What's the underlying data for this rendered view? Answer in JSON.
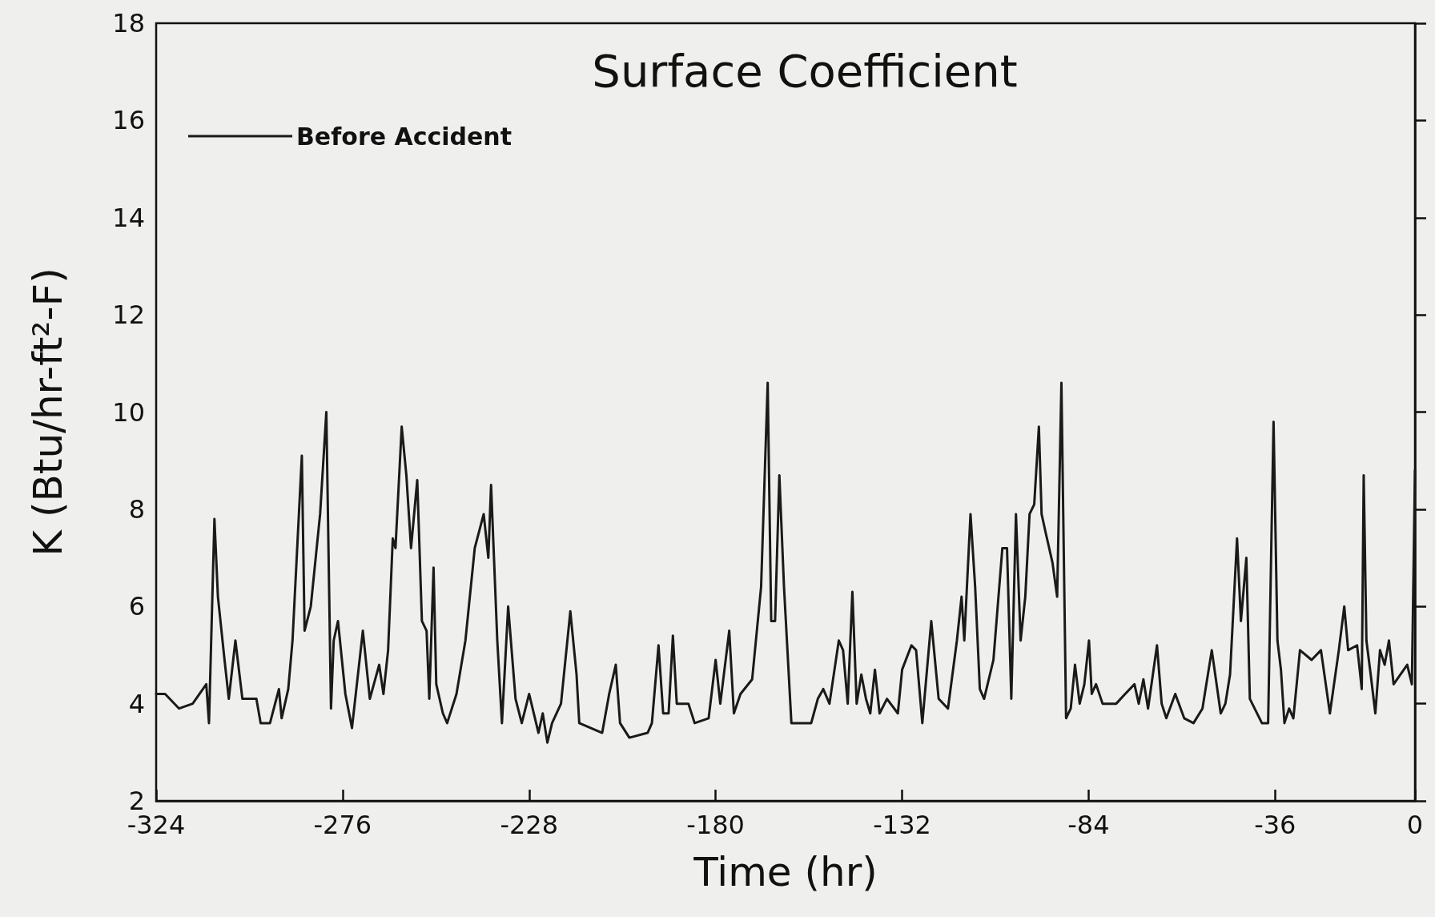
{
  "chart_data": {
    "type": "line",
    "title": "Surface Coefficient",
    "xlabel": "Time (hr)",
    "ylabel": "K (Btu/hr-ft²-F)",
    "xlim": [
      -324,
      0
    ],
    "xticks": [
      -324,
      -276,
      -228,
      -180,
      -132,
      -84,
      -36,
      0
    ],
    "ylim": [
      2,
      18
    ],
    "yticks": [
      2,
      4,
      6,
      8,
      10,
      12,
      14,
      16,
      18
    ],
    "grid": false,
    "legend": "top left",
    "marker": "none",
    "line_style": "solid",
    "series": [
      {
        "name": "Before Accident",
        "color": "#1a1a1a",
        "x": [
          -324,
          -321.7,
          -318.1,
          -314.6,
          -311.1,
          -310.4,
          -309,
          -308.1,
          -306.4,
          -305.3,
          -303.6,
          -301.8,
          -298.2,
          -297.1,
          -294.7,
          -292.4,
          -291.7,
          -290,
          -288.9,
          -286.5,
          -285.8,
          -284.2,
          -281.8,
          -280.2,
          -279,
          -278.3,
          -277.2,
          -275.3,
          -273.6,
          -270.8,
          -269,
          -266.6,
          -265.5,
          -264.3,
          -263.1,
          -262.4,
          -260.8,
          -259.6,
          -258.4,
          -256.8,
          -255.6,
          -254.4,
          -253.7,
          -252.6,
          -251.9,
          -250.2,
          -249.1,
          -246.7,
          -244.4,
          -242,
          -239.7,
          -238.5,
          -237.8,
          -236.2,
          -235,
          -233.4,
          -231.5,
          -229.9,
          -228,
          -225.6,
          -224.5,
          -223.3,
          -222.1,
          -219.8,
          -217.4,
          -215.8,
          -215.1,
          -209.2,
          -207.4,
          -205.7,
          -204.6,
          -202.2,
          -197.5,
          -196.4,
          -194.7,
          -193.5,
          -192.1,
          -191,
          -190,
          -187,
          -185.4,
          -181.8,
          -180,
          -178.8,
          -176.5,
          -175.3,
          -173.6,
          -170.6,
          -168.3,
          -166.6,
          -165.7,
          -164.7,
          -163.6,
          -162.4,
          -160.5,
          -155.4,
          -153.7,
          -152.3,
          -150.7,
          -148.3,
          -147.2,
          -146,
          -144.8,
          -143.7,
          -142.5,
          -141.3,
          -140.2,
          -139,
          -137.8,
          -135.9,
          -133.1,
          -132,
          -129.6,
          -128.4,
          -126.8,
          -124.5,
          -122.6,
          -120.2,
          -117.9,
          -116.7,
          -116,
          -114.4,
          -113.2,
          -112,
          -110.9,
          -108.5,
          -106.2,
          -105,
          -103.9,
          -102.7,
          -101.5,
          -100.3,
          -99.2,
          -98,
          -96.8,
          -96.1,
          -95,
          -93.3,
          -92.1,
          -91,
          -89.8,
          -88.6,
          -87.5,
          -86.3,
          -85.1,
          -83.9,
          -83.2,
          -82.1,
          -80.4,
          -76.9,
          -74.6,
          -72.2,
          -71.1,
          -69.9,
          -68.7,
          -66.4,
          -65.2,
          -64,
          -61.7,
          -59.4,
          -57,
          -54.7,
          -52.3,
          -50,
          -48.8,
          -47.6,
          -45.8,
          -44.8,
          -43.4,
          -42.5,
          -39.4,
          -37.8,
          -36.4,
          -35.4,
          -34.5,
          -33.6,
          -32.4,
          -31.3,
          -29.6,
          -26.6,
          -24.2,
          -21.9,
          -19.6,
          -18.2,
          -17.2,
          -14.9,
          -13.7,
          -13.2,
          -12.5,
          -11.4,
          -10.2,
          -9,
          -7.8,
          -6.7,
          -5.5,
          -2,
          -0.8,
          0
        ],
        "values": [
          4.2,
          4.2,
          3.9,
          4.0,
          4.4,
          3.6,
          7.8,
          6.2,
          4.9,
          4.1,
          5.3,
          4.1,
          4.1,
          3.6,
          3.6,
          4.3,
          3.7,
          4.3,
          5.3,
          9.1,
          5.5,
          6.0,
          7.9,
          10.0,
          3.9,
          5.3,
          5.7,
          4.2,
          3.5,
          5.5,
          4.1,
          4.8,
          4.2,
          5.1,
          7.4,
          7.2,
          9.7,
          8.7,
          7.2,
          8.6,
          5.7,
          5.5,
          4.1,
          6.8,
          4.4,
          3.8,
          3.6,
          4.2,
          5.3,
          7.2,
          7.9,
          7.0,
          8.5,
          5.3,
          3.6,
          6.0,
          4.1,
          3.6,
          4.2,
          3.4,
          3.8,
          3.2,
          3.6,
          4.0,
          5.9,
          4.6,
          3.6,
          3.4,
          4.2,
          4.8,
          3.6,
          3.3,
          3.4,
          3.6,
          5.2,
          3.8,
          3.8,
          5.4,
          4.0,
          4.0,
          3.6,
          3.7,
          4.9,
          4.0,
          5.5,
          3.8,
          4.2,
          4.5,
          6.4,
          10.6,
          5.7,
          5.7,
          8.7,
          6.4,
          3.6,
          3.6,
          4.1,
          4.3,
          4.0,
          5.3,
          5.1,
          4.0,
          6.3,
          4.0,
          4.6,
          4.1,
          3.8,
          4.7,
          3.8,
          4.1,
          3.8,
          4.7,
          5.2,
          5.1,
          3.6,
          5.7,
          4.1,
          3.9,
          5.3,
          6.2,
          5.3,
          7.9,
          6.4,
          4.3,
          4.1,
          4.9,
          7.2,
          7.2,
          4.1,
          7.9,
          5.3,
          6.2,
          7.9,
          8.1,
          9.7,
          7.9,
          7.5,
          6.9,
          6.2,
          10.6,
          3.7,
          3.9,
          4.8,
          4.0,
          4.4,
          5.3,
          4.2,
          4.4,
          4.0,
          4.0,
          4.2,
          4.4,
          4.0,
          4.5,
          3.9,
          5.2,
          4.0,
          3.7,
          4.2,
          3.7,
          3.6,
          3.9,
          5.1,
          3.8,
          4.0,
          4.6,
          7.4,
          5.7,
          7.0,
          4.1,
          3.6,
          3.6,
          9.8,
          5.3,
          4.7,
          3.6,
          3.9,
          3.7,
          5.1,
          4.9,
          5.1,
          3.8,
          5.1,
          6.0,
          5.1,
          5.2,
          4.3,
          8.7,
          5.3,
          4.6,
          3.8,
          5.1,
          4.8,
          5.3,
          4.4,
          4.8,
          4.4,
          8.8
        ]
      }
    ]
  }
}
